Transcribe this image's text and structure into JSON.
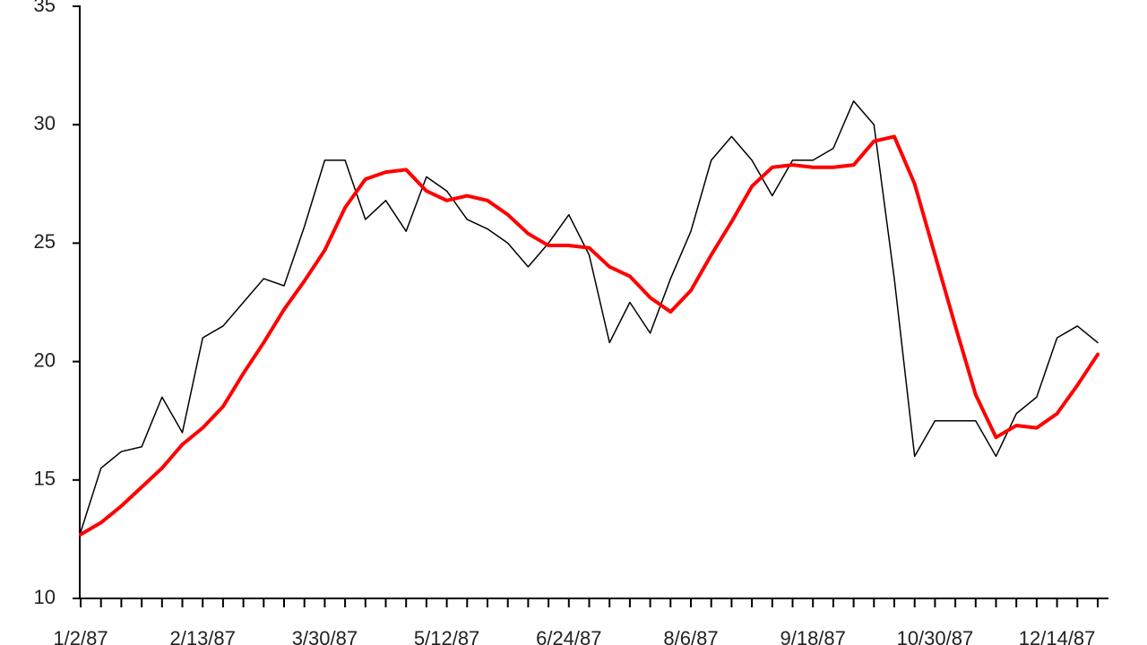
{
  "chart_data": {
    "type": "line",
    "categories": [
      "1/2/87",
      null,
      null,
      null,
      null,
      null,
      "2/13/87",
      null,
      null,
      null,
      null,
      null,
      "3/30/87",
      null,
      null,
      null,
      null,
      null,
      "5/12/87",
      null,
      null,
      null,
      null,
      null,
      "6/24/87",
      null,
      null,
      null,
      null,
      null,
      "8/6/87",
      null,
      null,
      null,
      null,
      null,
      "9/18/87",
      null,
      null,
      null,
      null,
      null,
      "10/30/87",
      null,
      null,
      null,
      null,
      null,
      "12/14/87",
      null,
      null
    ],
    "series": [
      {
        "color": "#000000",
        "values": [
          12.8,
          15.5,
          16.2,
          16.4,
          18.5,
          17.0,
          21.0,
          21.5,
          22.5,
          23.5,
          23.2,
          25.7,
          28.5,
          28.5,
          26.0,
          26.8,
          25.5,
          27.8,
          27.2,
          26.0,
          25.6,
          25.0,
          24.0,
          25.0,
          26.2,
          24.5,
          20.8,
          22.5,
          21.2,
          23.5,
          25.5,
          28.5,
          29.5,
          28.5,
          27.0,
          28.5,
          28.5,
          29.0,
          31.0,
          30.0,
          23.5,
          16.0,
          17.5,
          17.5,
          17.5,
          16.0,
          17.8,
          18.5,
          21.0,
          21.5,
          20.8
        ]
      },
      {
        "color": "#ff0000",
        "values": [
          12.7,
          13.2,
          13.9,
          14.7,
          15.5,
          16.5,
          17.2,
          18.1,
          19.5,
          20.8,
          22.2,
          23.4,
          24.7,
          26.5,
          27.7,
          28.0,
          28.1,
          27.2,
          26.8,
          27.0,
          26.8,
          26.2,
          25.4,
          24.9,
          24.9,
          24.8,
          24.0,
          23.6,
          22.7,
          22.1,
          23.0,
          24.5,
          25.9,
          27.4,
          28.2,
          28.3,
          28.2,
          28.2,
          28.3,
          29.3,
          29.5,
          27.5,
          24.5,
          21.5,
          18.6,
          16.8,
          17.3,
          17.2,
          17.8,
          19.0,
          20.3
        ]
      }
    ],
    "ylim": [
      10,
      35
    ],
    "yticks": [
      10,
      15,
      20,
      25,
      30,
      35
    ],
    "grid": false
  }
}
